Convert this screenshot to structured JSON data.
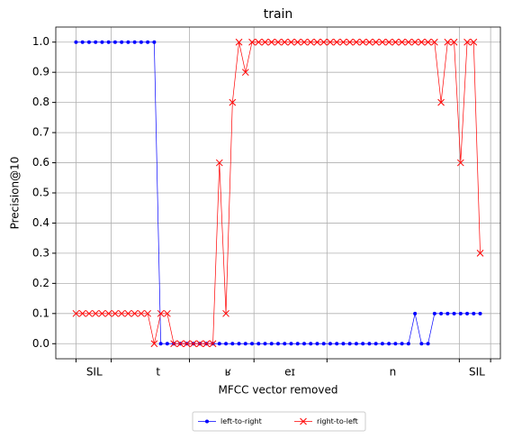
{
  "chart_data": {
    "type": "line",
    "title": "train",
    "xlabel": "MFCC vector removed",
    "ylabel": "Precision@10",
    "x": [
      0,
      1,
      2,
      3,
      4,
      5,
      6,
      7,
      8,
      9,
      10,
      11,
      12,
      13,
      14,
      15,
      16,
      17,
      18,
      19,
      20,
      21,
      22,
      23,
      24,
      25,
      26,
      27,
      28,
      29,
      30,
      31,
      32,
      33,
      34,
      35,
      36,
      37,
      38,
      39,
      40,
      41,
      42,
      43,
      44,
      45,
      46,
      47,
      48,
      49,
      50,
      51,
      52,
      53,
      54,
      55,
      56,
      57,
      58,
      59,
      60,
      61,
      62
    ],
    "series": [
      {
        "name": "left-to-right",
        "color": "#0000ff",
        "marker": "o",
        "values": [
          1,
          1,
          1,
          1,
          1,
          1,
          1,
          1,
          1,
          1,
          1,
          1,
          1,
          0,
          0,
          0,
          0,
          0,
          0,
          0,
          0,
          0,
          0,
          0,
          0,
          0,
          0,
          0,
          0,
          0,
          0,
          0,
          0,
          0,
          0,
          0,
          0,
          0,
          0,
          0,
          0,
          0,
          0,
          0,
          0,
          0,
          0,
          0,
          0,
          0,
          0,
          0,
          0.1,
          0,
          0,
          0.1,
          0.1,
          0.1,
          0.1,
          0.1,
          0.1,
          0.1,
          0.1
        ]
      },
      {
        "name": "right-to-left",
        "color": "#ff0000",
        "marker": "x",
        "values": [
          0.1,
          0.1,
          0.1,
          0.1,
          0.1,
          0.1,
          0.1,
          0.1,
          0.1,
          0.1,
          0.1,
          0.1,
          0,
          0.1,
          0.1,
          0,
          0,
          0,
          0,
          0,
          0,
          0,
          0.6,
          0.1,
          0.8,
          1,
          0.9,
          1,
          1,
          1,
          1,
          1,
          1,
          1,
          1,
          1,
          1,
          1,
          1,
          1,
          1,
          1,
          1,
          1,
          1,
          1,
          1,
          1,
          1,
          1,
          1,
          1,
          1,
          1,
          1,
          1,
          0.8,
          1,
          1,
          0.6,
          1,
          1,
          0.3
        ]
      }
    ],
    "xlim": [
      -3.1,
      65.1
    ],
    "ylim": [
      -0.05,
      1.05
    ],
    "xticks": [
      {
        "value": 2.8,
        "label": "SIL"
      },
      {
        "value": 12.6,
        "label": "t"
      },
      {
        "value": 23.3,
        "label": "ʁ"
      },
      {
        "value": 32.8,
        "label": "eɪ"
      },
      {
        "value": 48.6,
        "label": "n"
      },
      {
        "value": 61.5,
        "label": "SIL"
      }
    ],
    "xgrid": [
      0,
      5.4,
      17.4,
      27.3,
      38.5,
      58.8,
      63.6
    ],
    "yticks": [
      {
        "value": 0,
        "label": "0.0"
      },
      0.1,
      0.2,
      0.3,
      0.4,
      0.5,
      0.6,
      0.7,
      0.8,
      0.9,
      {
        "value": 1,
        "label": "1.0"
      }
    ],
    "grid": true,
    "legend": "bottom"
  }
}
